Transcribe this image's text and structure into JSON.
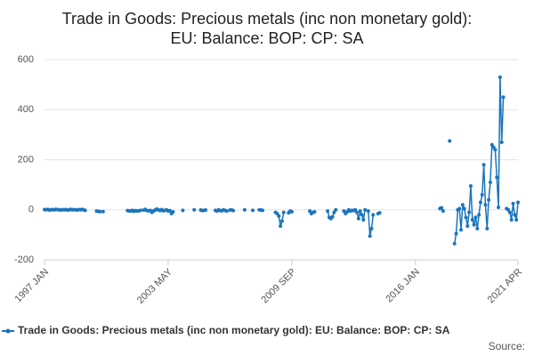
{
  "chart_data": {
    "type": "line",
    "title": [
      "Trade in Goods: Precious metals (inc non monetary gold):",
      "EU: Balance: BOP: CP: SA"
    ],
    "source": "Source:",
    "categories": [
      "1997 JAN",
      null,
      null,
      null,
      null,
      null,
      null,
      null,
      null,
      null,
      null,
      null,
      null,
      null,
      null,
      null,
      null,
      null,
      null,
      null,
      null,
      null,
      null,
      null,
      null,
      null,
      null,
      null,
      null,
      null,
      null,
      null,
      null,
      null,
      null,
      null,
      null,
      null,
      null,
      null,
      null,
      null,
      null,
      null,
      null,
      null,
      null,
      null,
      null,
      null,
      null,
      null,
      null,
      null,
      null,
      null,
      null,
      null,
      null,
      null,
      null,
      null,
      null,
      null,
      null,
      null,
      null,
      null,
      null,
      null,
      null,
      null,
      null,
      null,
      null,
      null,
      "2003 MAY",
      null,
      null,
      null,
      null,
      null,
      null,
      null,
      null,
      null,
      null,
      null,
      null,
      null,
      null,
      null,
      null,
      null,
      null,
      null,
      null,
      null,
      null,
      null,
      null,
      null,
      null,
      null,
      null,
      null,
      null,
      null,
      null,
      null,
      null,
      null,
      null,
      null,
      null,
      null,
      null,
      null,
      null,
      null,
      null,
      null,
      null,
      null,
      null,
      null,
      null,
      null,
      null,
      null,
      null,
      null,
      null,
      null,
      null,
      null,
      null,
      null,
      null,
      null,
      null,
      null,
      null,
      null,
      null,
      null,
      null,
      null,
      null,
      null,
      null,
      null,
      "2009 SEP",
      null,
      null,
      null,
      null,
      null,
      null,
      null,
      null,
      null,
      null,
      null,
      null,
      null,
      null,
      null,
      null,
      null,
      null,
      null,
      null,
      null,
      null,
      null,
      null,
      null,
      null,
      null,
      null,
      null,
      null,
      null,
      null,
      null,
      null,
      null,
      null,
      null,
      null,
      null,
      null,
      null,
      null,
      null,
      null,
      null,
      null,
      null,
      null,
      null,
      null,
      null,
      null,
      null,
      null,
      null,
      null,
      null,
      null,
      null,
      null,
      null,
      null,
      null,
      null,
      null,
      null,
      null,
      null,
      null,
      null,
      null,
      null,
      null,
      null,
      null,
      "2016 JAN",
      null,
      null,
      null,
      null,
      null,
      null,
      null,
      null,
      null,
      null,
      null,
      null,
      null,
      null,
      null,
      null,
      null,
      null,
      null,
      null,
      null,
      null,
      null,
      null,
      null,
      null,
      null,
      null,
      null,
      null,
      null,
      null,
      null,
      null,
      null,
      null,
      null,
      null,
      null,
      null,
      null,
      null,
      null,
      null,
      null,
      null,
      null,
      null,
      null,
      null,
      null,
      null,
      null,
      null,
      null,
      null,
      null,
      null,
      null,
      null,
      null,
      null,
      "2021 APR"
    ],
    "series": [
      {
        "name": "Trade in Goods: Precious metals (inc non monetary gold): EU: Balance: BOP: CP: SA",
        "color": "#1a75bc",
        "values": [
          1,
          0,
          2,
          -1,
          0,
          1,
          0,
          2,
          1,
          0,
          -1,
          1,
          0,
          1,
          -1,
          0,
          2,
          0,
          1,
          0,
          -1,
          1,
          0,
          2,
          0,
          -2,
          null,
          null,
          null,
          null,
          null,
          null,
          -5,
          -6,
          -7,
          null,
          -7,
          null,
          null,
          null,
          null,
          null,
          null,
          null,
          null,
          null,
          null,
          null,
          null,
          null,
          null,
          -3,
          -4,
          -5,
          -2,
          -6,
          -3,
          -5,
          -4,
          -2,
          null,
          -1,
          2,
          -3,
          -4,
          -2,
          -10,
          -5,
          -1,
          3,
          0,
          -3,
          1,
          -4,
          -2,
          0,
          -5,
          -3,
          -15,
          -8,
          null,
          null,
          null,
          null,
          null,
          -2,
          null,
          null,
          null,
          null,
          null,
          null,
          0,
          null,
          null,
          null,
          -1,
          -3,
          -2,
          -1,
          null,
          null,
          null,
          null,
          null,
          -2,
          -5,
          0,
          -3,
          -4,
          0,
          -2,
          -5,
          null,
          -1,
          0,
          -3,
          null,
          null,
          null,
          null,
          null,
          null,
          0,
          null,
          null,
          null,
          null,
          -2,
          null,
          null,
          null,
          0,
          -1,
          -2,
          null,
          null,
          null,
          null,
          null,
          null,
          null,
          -10,
          -15,
          -25,
          -65,
          -45,
          -10,
          null,
          null,
          -12,
          -5,
          -8,
          null,
          null,
          null,
          null,
          null,
          null,
          null,
          null,
          null,
          null,
          -5,
          -15,
          -10,
          -8,
          null,
          null,
          null,
          null,
          null,
          null,
          null,
          -5,
          -30,
          -35,
          -28,
          -10,
          0,
          null,
          null,
          null,
          null,
          -5,
          -15,
          -8,
          0,
          -5,
          -2,
          -3,
          0,
          -10,
          -35,
          -5,
          -20,
          -40,
          0,
          null,
          -5,
          -105,
          -75,
          -20,
          null,
          null,
          -15,
          -12,
          null,
          null,
          null,
          null,
          null,
          null,
          null,
          null,
          null,
          null,
          null,
          null,
          null,
          null,
          null,
          null,
          null,
          null,
          null,
          null,
          null,
          null,
          null,
          null,
          null,
          null,
          null,
          null,
          null,
          null,
          null,
          null,
          null,
          null,
          null,
          null,
          5,
          8,
          -5,
          null,
          null,
          null,
          275,
          null,
          null,
          -135,
          -95,
          0,
          5,
          -80,
          20,
          5,
          -30,
          -65,
          -10,
          95,
          -40,
          -60,
          -30,
          -75,
          -20,
          30,
          60,
          180,
          20,
          -75,
          40,
          110,
          260,
          250,
          240,
          130,
          10,
          530,
          270,
          450,
          null,
          5,
          0,
          -10,
          -40,
          25,
          -20,
          -40,
          30
        ]
      }
    ],
    "ylim": [
      -200,
      600
    ],
    "yticks": [
      -200,
      0,
      200,
      400,
      600
    ],
    "grid": true,
    "legend": "bottom"
  }
}
